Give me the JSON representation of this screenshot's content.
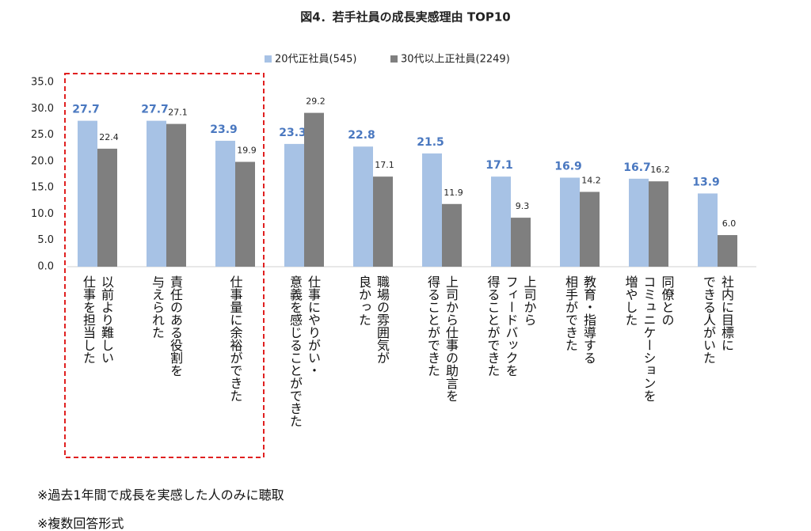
{
  "chart_data": {
    "type": "bar",
    "title": "図4．若手社員の成長実感理由 TOP10",
    "categories": [
      [
        "以前より難しい",
        "仕事を担当した"
      ],
      [
        "責任のある役割を",
        "与えられた"
      ],
      [
        "仕事量に余裕ができた"
      ],
      [
        "仕事にやりがい・",
        "意義を感じることができた"
      ],
      [
        "職場の雰囲気が",
        "良かった"
      ],
      [
        "上司から仕事の助言を",
        "得ることができた"
      ],
      [
        "上司から",
        "フィードバックを",
        "得ることができた"
      ],
      [
        "教育・指導する",
        "相手ができた"
      ],
      [
        "同僚との",
        "コミュニケーションを",
        "増やした"
      ],
      [
        "社内に目標に",
        "できる人がいた"
      ]
    ],
    "series": [
      {
        "name": "20代正社員(545)",
        "color": "#a7c2e5",
        "values": [
          27.7,
          27.7,
          23.9,
          23.3,
          22.8,
          21.5,
          17.1,
          16.9,
          16.7,
          13.9
        ]
      },
      {
        "name": "30代以上正社員(2249)",
        "color": "#7f7f7f",
        "values": [
          22.4,
          27.1,
          19.9,
          29.2,
          17.1,
          11.9,
          9.3,
          14.2,
          16.2,
          6.0
        ],
        "value_labels": [
          "22.4",
          "27.1",
          "19.9",
          "29.2",
          "17.1",
          "11.9",
          "9.3",
          "14.2",
          "16.2",
          "6.0"
        ]
      }
    ],
    "ylim": [
      0,
      35
    ],
    "yticks": [
      {
        "value": 0,
        "label": "0.0"
      },
      {
        "value": 5,
        "label": "5.0"
      },
      {
        "value": 10,
        "label": "10.0"
      },
      {
        "value": 15,
        "label": "15.0"
      },
      {
        "value": 20,
        "label": "20.0"
      },
      {
        "value": 25,
        "label": "25.0"
      },
      {
        "value": 30,
        "label": "30.0"
      },
      {
        "value": 35,
        "label": "35.0"
      }
    ],
    "grid": false,
    "notes": [
      "※過去1年間で成長を実感した人のみに聴取",
      "※複数回答形式"
    ]
  }
}
